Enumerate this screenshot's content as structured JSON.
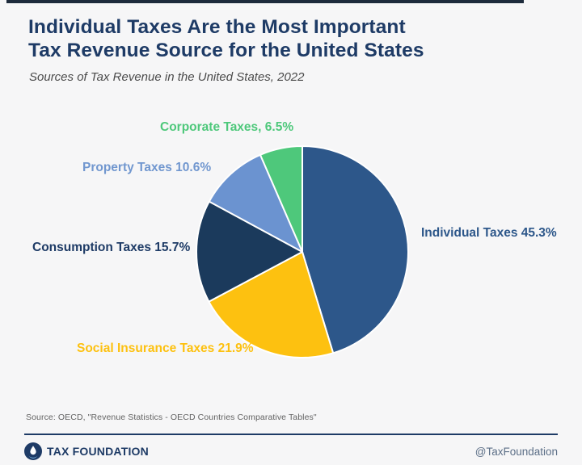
{
  "header": {
    "title_line1": "Individual Taxes Are the Most Important",
    "title_line2": "Tax Revenue Source for the United States",
    "subtitle": "Sources of Tax Revenue in the United States, 2022"
  },
  "chart_data": {
    "type": "pie",
    "title": "Sources of Tax Revenue in the United States, 2022",
    "start_angle_deg": 0,
    "direction": "clockwise",
    "stroke_color": "#ffffff",
    "segments": [
      {
        "label": "Individual Taxes",
        "value": 45.3,
        "display": "Individual Taxes 45.3%",
        "color": "#2d578a"
      },
      {
        "label": "Social Insurance Taxes",
        "value": 21.9,
        "display": "Social Insurance Taxes 21.9%",
        "color": "#fdc110"
      },
      {
        "label": "Consumption Taxes",
        "value": 15.7,
        "display": "Consumption Taxes 15.7%",
        "color": "#1b3a5c"
      },
      {
        "label": "Property Taxes",
        "value": 10.6,
        "display": "Property Taxes 10.6%",
        "color": "#6b93d0"
      },
      {
        "label": "Corporate Taxes",
        "value": 6.5,
        "display": "Corporate Taxes, 6.5%",
        "color": "#4ec87b"
      }
    ],
    "label_colors": {
      "individual": "#2d578a",
      "social": "#fdc110",
      "consumption": "#1e3b66",
      "property": "#7197cf",
      "corporate": "#4ec87b"
    }
  },
  "source_line": "Source: OECD, \"Revenue Statistics - OECD Countries Comparative Tables\"",
  "footer": {
    "brand": "TAX FOUNDATION",
    "handle": "@TaxFoundation"
  },
  "colors": {
    "navy": "#1e3b66",
    "background": "#f6f6f7",
    "topbar": "#1e2b3c"
  }
}
